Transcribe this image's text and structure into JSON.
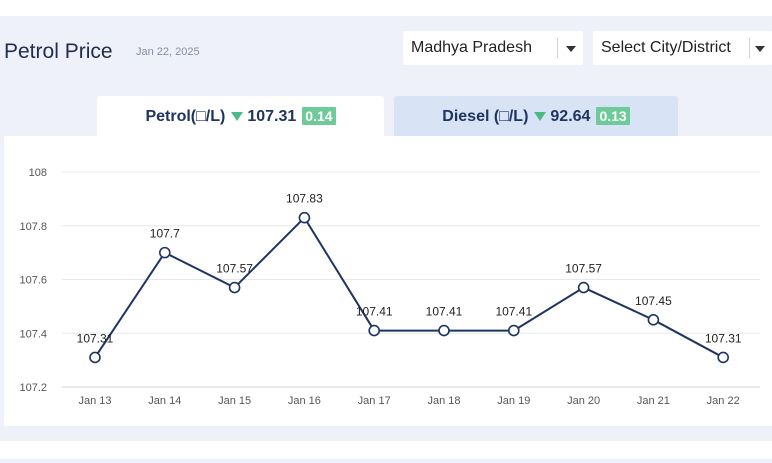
{
  "header": {
    "title": "Petrol Price",
    "date": "Jan 22, 2025"
  },
  "filters": {
    "state_value": "Madhya Pradesh",
    "city_placeholder": "Select City/District"
  },
  "tabs": [
    {
      "label": "Petrol(□/L)",
      "price": "107.31",
      "change": "0.14",
      "direction": "down",
      "active": true
    },
    {
      "label": "Diesel (□/L)",
      "price": "92.64",
      "change": "0.13",
      "direction": "down",
      "active": false
    }
  ],
  "colors": {
    "line": "#1f3560",
    "down_arrow": "#4cb989",
    "change_badge": "#6fca99",
    "active_tab": "#ffffff",
    "inactive_tab": "#d8e3f6"
  },
  "chart_data": {
    "type": "line",
    "title": "",
    "xlabel": "",
    "ylabel": "",
    "categories": [
      "Jan 13",
      "Jan 14",
      "Jan 15",
      "Jan 16",
      "Jan 17",
      "Jan 18",
      "Jan 19",
      "Jan 20",
      "Jan 21",
      "Jan 22"
    ],
    "values": [
      107.31,
      107.7,
      107.57,
      107.83,
      107.41,
      107.41,
      107.41,
      107.57,
      107.45,
      107.31
    ],
    "value_labels": [
      "107.31",
      "107.7",
      "107.57",
      "107.83",
      "107.41",
      "107.41",
      "107.41",
      "107.57",
      "107.45",
      "107.31"
    ],
    "ylim": [
      107.2,
      108
    ],
    "yticks": [
      107.2,
      107.4,
      107.6,
      107.8,
      108
    ],
    "ytick_labels": [
      "107.2",
      "107.4",
      "107.6",
      "107.8",
      "108"
    ],
    "grid": true,
    "legend": "none"
  }
}
